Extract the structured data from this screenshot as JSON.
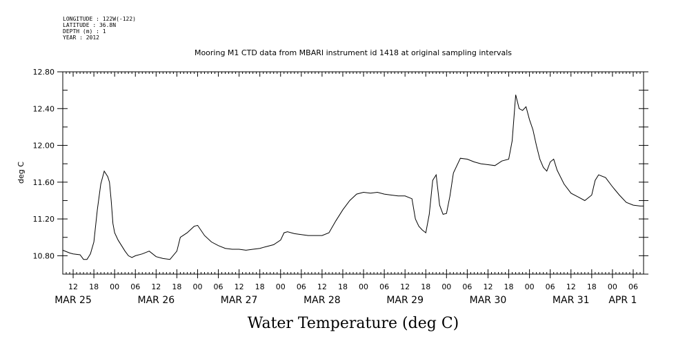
{
  "metadata": {
    "longitude": "LONGITUDE : 122W(-122)",
    "latitude": "LATITUDE : 36.8N",
    "depth": "DEPTH (m) : 1",
    "year": "YEAR : 2012"
  },
  "chart_data": {
    "type": "line",
    "title": "Mooring M1 CTD data from MBARI instrument id 1418 at original sampling intervals",
    "xlabel": "Water Temperature (deg C)",
    "ylabel": "deg C",
    "ylim": [
      10.6,
      12.8
    ],
    "xlim": [
      "2012-03-25T09:00",
      "2012-04-01T09:00"
    ],
    "yticks": [
      "10.80",
      "11.20",
      "11.60",
      "12.00",
      "12.40",
      "12.80"
    ],
    "hour_labels": [
      "12",
      "18",
      "00",
      "06",
      "12",
      "18",
      "00",
      "06",
      "12",
      "18",
      "00",
      "06",
      "12",
      "18",
      "00",
      "06",
      "12",
      "18",
      "00",
      "06",
      "12",
      "18",
      "00",
      "06",
      "12",
      "18",
      "00",
      "06"
    ],
    "date_labels": [
      "MAR 25",
      "MAR 26",
      "MAR 27",
      "MAR 28",
      "MAR 29",
      "MAR 30",
      "MAR 31",
      "APR  1"
    ],
    "grid": false,
    "series": [
      {
        "x": [
          "2012-03-25T09:00",
          "2012-03-25T11:00",
          "2012-03-25T12:00",
          "2012-03-25T14:00",
          "2012-03-25T15:00",
          "2012-03-25T16:00",
          "2012-03-25T17:00",
          "2012-03-25T18:00",
          "2012-03-25T19:00",
          "2012-03-25T20:00",
          "2012-03-25T21:00",
          "2012-03-25T22:00",
          "2012-03-25T22:30",
          "2012-03-25T23:00",
          "2012-03-25T23:30",
          "2012-03-26T00:00",
          "2012-03-26T01:00",
          "2012-03-26T02:00",
          "2012-03-26T03:00",
          "2012-03-26T04:00",
          "2012-03-26T05:00",
          "2012-03-26T06:00",
          "2012-03-26T08:00",
          "2012-03-26T10:00",
          "2012-03-26T12:00",
          "2012-03-26T14:00",
          "2012-03-26T16:00",
          "2012-03-26T18:00",
          "2012-03-26T19:00",
          "2012-03-26T21:00",
          "2012-03-26T23:00",
          "2012-03-27T00:00",
          "2012-03-27T02:00",
          "2012-03-27T04:00",
          "2012-03-27T06:00",
          "2012-03-27T08:00",
          "2012-03-27T10:00",
          "2012-03-27T12:00",
          "2012-03-27T14:00",
          "2012-03-27T16:00",
          "2012-03-27T18:00",
          "2012-03-27T20:00",
          "2012-03-27T22:00",
          "2012-03-28T00:00",
          "2012-03-28T01:00",
          "2012-03-28T02:00",
          "2012-03-28T04:00",
          "2012-03-28T06:00",
          "2012-03-28T08:00",
          "2012-03-28T10:00",
          "2012-03-28T12:00",
          "2012-03-28T14:00",
          "2012-03-28T16:00",
          "2012-03-28T18:00",
          "2012-03-28T20:00",
          "2012-03-28T22:00",
          "2012-03-29T00:00",
          "2012-03-29T02:00",
          "2012-03-29T04:00",
          "2012-03-29T06:00",
          "2012-03-29T08:00",
          "2012-03-29T10:00",
          "2012-03-29T12:00",
          "2012-03-29T14:00",
          "2012-03-29T15:00",
          "2012-03-29T16:00",
          "2012-03-29T17:00",
          "2012-03-29T18:00",
          "2012-03-29T19:00",
          "2012-03-29T20:00",
          "2012-03-29T21:00",
          "2012-03-29T22:00",
          "2012-03-29T23:00",
          "2012-03-30T00:00",
          "2012-03-30T01:00",
          "2012-03-30T02:00",
          "2012-03-30T04:00",
          "2012-03-30T06:00",
          "2012-03-30T08:00",
          "2012-03-30T10:00",
          "2012-03-30T12:00",
          "2012-03-30T14:00",
          "2012-03-30T16:00",
          "2012-03-30T18:00",
          "2012-03-30T19:00",
          "2012-03-30T20:00",
          "2012-03-30T21:00",
          "2012-03-30T22:00",
          "2012-03-30T23:00",
          "2012-03-31T00:00",
          "2012-03-31T01:00",
          "2012-03-31T02:00",
          "2012-03-31T03:00",
          "2012-03-31T04:00",
          "2012-03-31T05:00",
          "2012-03-31T06:00",
          "2012-03-31T07:00",
          "2012-03-31T08:00",
          "2012-03-31T10:00",
          "2012-03-31T12:00",
          "2012-03-31T14:00",
          "2012-03-31T16:00",
          "2012-03-31T18:00",
          "2012-03-31T19:00",
          "2012-03-31T20:00",
          "2012-03-31T22:00",
          "2012-04-01T00:00",
          "2012-04-01T02:00",
          "2012-04-01T04:00",
          "2012-04-01T06:00",
          "2012-04-01T08:00",
          "2012-04-01T09:00"
        ],
        "y": [
          10.86,
          10.83,
          10.82,
          10.81,
          10.76,
          10.76,
          10.82,
          10.95,
          11.3,
          11.58,
          11.72,
          11.66,
          11.6,
          11.4,
          11.15,
          11.05,
          10.97,
          10.91,
          10.85,
          10.8,
          10.78,
          10.8,
          10.82,
          10.85,
          10.79,
          10.77,
          10.76,
          10.85,
          11.0,
          11.05,
          11.12,
          11.13,
          11.02,
          10.95,
          10.91,
          10.88,
          10.87,
          10.87,
          10.86,
          10.87,
          10.88,
          10.9,
          10.92,
          10.97,
          11.05,
          11.06,
          11.04,
          11.03,
          11.02,
          11.02,
          11.02,
          11.05,
          11.18,
          11.3,
          11.4,
          11.47,
          11.49,
          11.48,
          11.49,
          11.47,
          11.46,
          11.45,
          11.45,
          11.42,
          11.2,
          11.12,
          11.08,
          11.05,
          11.25,
          11.62,
          11.68,
          11.35,
          11.25,
          11.26,
          11.45,
          11.7,
          11.86,
          11.85,
          11.82,
          11.8,
          11.79,
          11.78,
          11.83,
          11.85,
          12.05,
          12.55,
          12.4,
          12.38,
          12.42,
          12.28,
          12.17,
          12.0,
          11.85,
          11.76,
          11.72,
          11.82,
          11.85,
          11.73,
          11.58,
          11.48,
          11.44,
          11.4,
          11.46,
          11.62,
          11.68,
          11.65,
          11.55,
          11.46,
          11.38,
          11.35,
          11.34,
          11.34
        ]
      }
    ]
  }
}
